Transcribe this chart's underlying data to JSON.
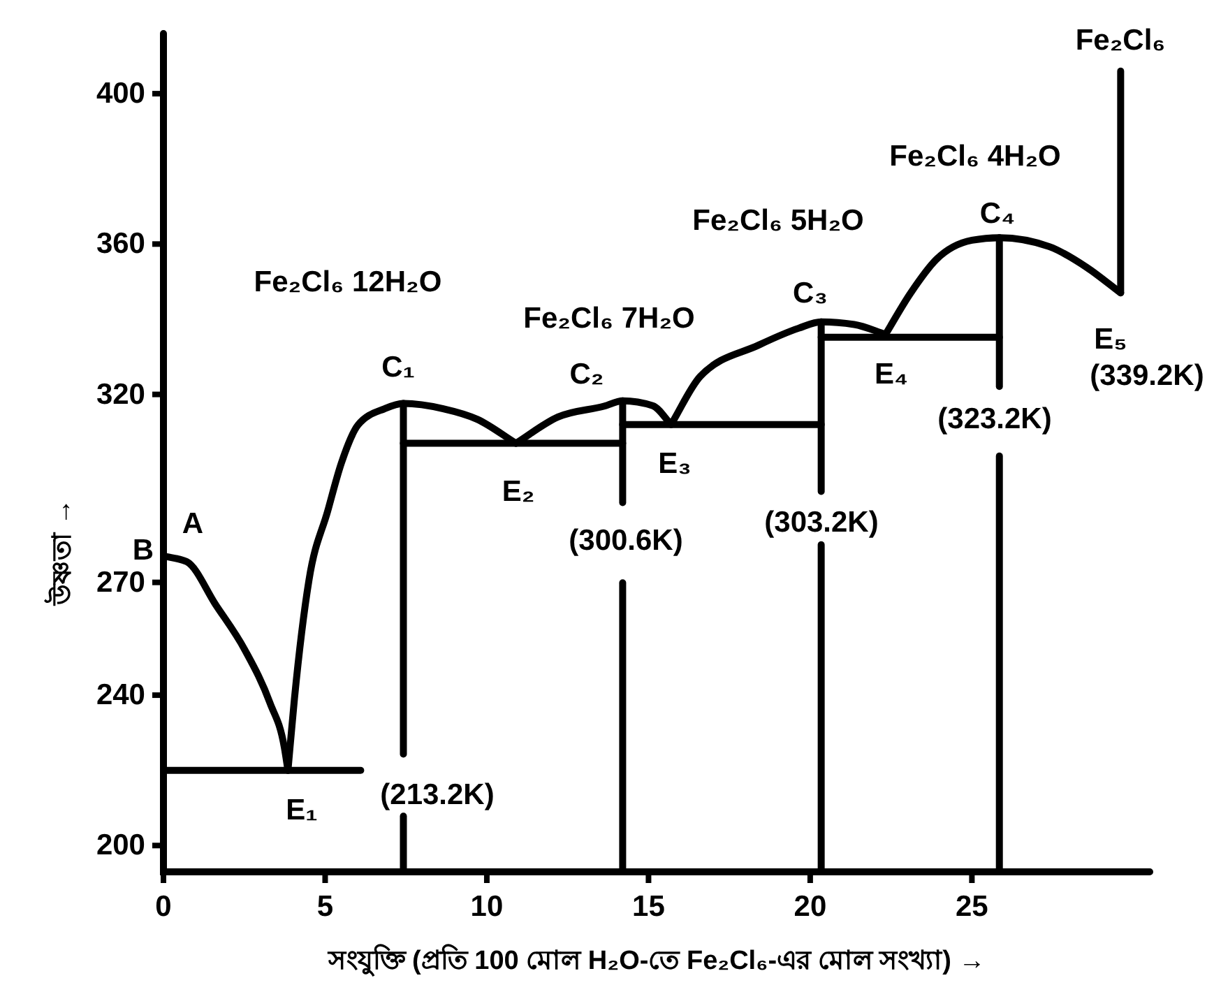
{
  "chart_data": {
    "type": "line",
    "xlabel": "সংযুক্তি (প্রতি 100 মোল H₂O-তে Fe₂Cl₆-এর মোল সংখ্যা) →",
    "ylabel": "উষ্ণতা →",
    "xlim": [
      0,
      30.5
    ],
    "ylim": [
      193,
      416
    ],
    "xticks": [
      0,
      5,
      10,
      15,
      20,
      25
    ],
    "yticks": [
      200,
      240,
      270,
      320,
      360,
      400
    ],
    "series": [
      {
        "color": "#000000",
        "x": [
          0,
          0.72,
          1.62,
          2.52,
          3.29,
          3.74,
          3.85
        ],
        "values": [
          277,
          275.5,
          264,
          252,
          238,
          226,
          220
        ]
      },
      {
        "color": "#000000",
        "x": [
          3.85,
          4.05,
          4.5,
          5.08,
          5.5,
          6.02,
          6.84,
          7.42,
          8.65,
          9.7,
          10.9
        ],
        "values": [
          220,
          239,
          270.6,
          289,
          301.7,
          311.9,
          316.2,
          317.6,
          316.2,
          313.4,
          307
        ]
      },
      {
        "color": "#000000",
        "x": [
          10.9,
          12.2,
          13.64,
          14.2,
          15.13,
          15.7
        ],
        "values": [
          307,
          314,
          316.9,
          318.3,
          317,
          312
        ]
      },
      {
        "color": "#000000",
        "x": [
          15.7,
          16.6,
          18.4,
          19.64,
          20.34,
          21.36,
          22.33
        ],
        "values": [
          312,
          324.8,
          333.1,
          337.6,
          339.3,
          338.6,
          336
        ]
      },
      {
        "color": "#000000",
        "x": [
          22.33,
          23.1,
          23.9,
          25.0,
          25.85,
          27.4,
          28.55,
          29.6
        ],
        "values": [
          336,
          346.9,
          355.9,
          361,
          361.7,
          359.3,
          353.8,
          347
        ]
      },
      {
        "color": "#000000",
        "x": [
          29.6,
          29.6
        ],
        "values": [
          347,
          406
        ]
      },
      {
        "color": "#000000",
        "x": [
          0,
          6.1
        ],
        "values": [
          220,
          220
        ]
      },
      {
        "color": "#000000",
        "x": [
          7.42,
          14.2
        ],
        "values": [
          307,
          307
        ]
      },
      {
        "color": "#000000",
        "x": [
          14.2,
          20.34
        ],
        "values": [
          312,
          312
        ]
      },
      {
        "color": "#000000",
        "x": [
          20.34,
          25.85
        ],
        "values": [
          335.2,
          335.2
        ]
      },
      {
        "color": "#000000",
        "x": [
          7.42,
          7.42
        ],
        "values": [
          317.6,
          224.3
        ]
      },
      {
        "color": "#000000",
        "x": [
          7.42,
          7.42
        ],
        "values": [
          207.8,
          193
        ]
      },
      {
        "color": "#000000",
        "x": [
          14.2,
          14.2
        ],
        "values": [
          318.3,
          291.2
        ]
      },
      {
        "color": "#000000",
        "x": [
          14.2,
          14.2
        ],
        "values": [
          269.9,
          193
        ]
      },
      {
        "color": "#000000",
        "x": [
          20.34,
          20.34
        ],
        "values": [
          339.3,
          294.2
        ]
      },
      {
        "color": "#000000",
        "x": [
          20.34,
          20.34
        ],
        "values": [
          280,
          193
        ]
      },
      {
        "color": "#000000",
        "x": [
          25.85,
          25.85
        ],
        "values": [
          361.7,
          322.1
        ]
      },
      {
        "color": "#000000",
        "x": [
          25.85,
          25.85
        ],
        "values": [
          303.6,
          193
        ]
      }
    ],
    "annotations": [
      "Fe₂Cl₆",
      "Fe₂Cl₆ 4H₂O",
      "C₄",
      "Fe₂Cl₆ 5H₂O",
      "Fe₂Cl₆ 12H₂O",
      "C₃",
      "Fe₂Cl₆ 7H₂O",
      "C₁",
      "C₂",
      "E₄",
      "E₅",
      "(339.2K)",
      "(323.2K)",
      "E₂",
      "E₃",
      "(303.2K)",
      "(300.6K)",
      "A",
      "B",
      "(213.2K)",
      "E₁"
    ]
  }
}
